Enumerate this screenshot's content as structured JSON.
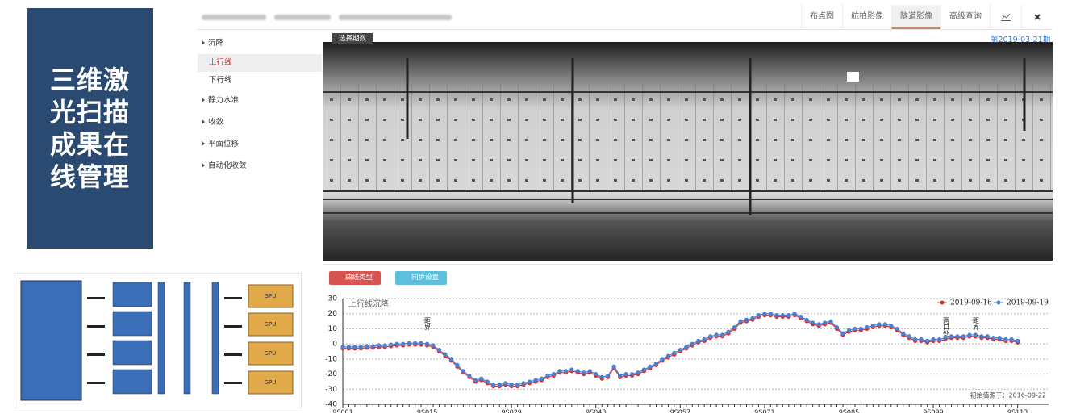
{
  "sidebar_title": {
    "lines": [
      "三维激",
      "光扫描",
      "成果在",
      "线管理"
    ]
  },
  "diagram": {
    "gpu_labels": [
      "GPU",
      "GPU",
      "GPU",
      "GPU"
    ]
  },
  "ui": {
    "tabs": [
      "布点图",
      "航拍影像",
      "隧道影像",
      "高级查询"
    ],
    "menu": [
      {
        "label": "沉降",
        "children": [
          "上行线",
          "下行线"
        ]
      },
      {
        "label": "静力水准"
      },
      {
        "label": "收敛"
      },
      {
        "label": "平面位移"
      },
      {
        "label": "自动化收敛"
      }
    ],
    "period_select": "选择期数",
    "period": "第2019-03-21期",
    "buttons": [
      "曲线类型",
      "同步设置"
    ]
  },
  "chart_data": {
    "type": "line",
    "title": "上行线沉降",
    "categories": [
      "9S001",
      null,
      null,
      null,
      null,
      null,
      null,
      null,
      null,
      null,
      null,
      null,
      null,
      null,
      "9S015",
      null,
      null,
      null,
      null,
      null,
      null,
      null,
      null,
      null,
      null,
      null,
      null,
      null,
      "9S029",
      null,
      null,
      null,
      null,
      null,
      null,
      null,
      null,
      null,
      null,
      null,
      null,
      null,
      "9S043",
      null,
      null,
      null,
      null,
      null,
      null,
      null,
      null,
      null,
      null,
      null,
      null,
      null,
      "9S057",
      null,
      null,
      null,
      null,
      null,
      null,
      null,
      null,
      null,
      null,
      null,
      null,
      null,
      "9S071",
      null,
      null,
      null,
      null,
      null,
      null,
      null,
      null,
      null,
      null,
      null,
      null,
      null,
      "9S085",
      null,
      null,
      null,
      null,
      null,
      null,
      null,
      null,
      null,
      null,
      null,
      null,
      null,
      "9S099",
      null,
      null,
      null,
      null,
      null,
      null,
      null,
      null,
      null,
      null,
      null,
      null,
      null,
      "9S113"
    ],
    "series": [
      {
        "name": "2019-09-16",
        "color": "#d9302c",
        "values": [
          -3,
          -3,
          -3,
          -3,
          -2.5,
          -2.5,
          -2,
          -2,
          -1.5,
          -1,
          -1,
          -0.5,
          -0.5,
          -0.5,
          -1,
          -2,
          -5,
          -8,
          -11,
          -15,
          -19,
          -22,
          -25,
          -24,
          -26,
          -28,
          -28,
          -27,
          -28,
          -28,
          -27,
          -26,
          -25,
          -24,
          -22,
          -21,
          -19,
          -19,
          -18,
          -19,
          -20,
          -19,
          -21,
          -23,
          -22,
          -16,
          -22,
          -21,
          -21,
          -20,
          -18,
          -16,
          -14,
          -11,
          -9,
          -7,
          -5,
          -3,
          -1,
          1,
          2,
          4,
          5,
          5,
          7,
          10,
          14,
          15,
          16,
          18,
          19,
          19,
          18,
          18,
          18,
          19,
          17,
          15,
          13,
          12,
          13,
          14,
          10,
          6,
          8,
          9,
          9,
          10,
          11,
          12,
          12,
          11,
          9,
          6,
          4,
          2,
          2,
          1,
          2,
          2,
          3,
          4,
          4,
          4,
          5,
          5,
          4,
          4,
          3,
          3,
          2,
          2,
          1
        ]
      },
      {
        "name": "2019-09-19",
        "color": "#4a7fd4",
        "values": [
          -2,
          -2,
          -2,
          -2,
          -1.5,
          -1.5,
          -1,
          -1,
          -0.5,
          0,
          0,
          0.5,
          0.5,
          0.5,
          0,
          -1,
          -4,
          -7,
          -10,
          -14,
          -18,
          -21,
          -24,
          -23,
          -25,
          -27,
          -27,
          -26,
          -27,
          -27,
          -26,
          -25,
          -24,
          -23,
          -21,
          -20,
          -18,
          -18,
          -17,
          -18,
          -19,
          -18,
          -20,
          -22,
          -21,
          -15,
          -21,
          -20,
          -20,
          -19,
          -17,
          -15,
          -13,
          -10,
          -8,
          -6,
          -4,
          -2,
          0,
          2,
          3,
          5,
          6,
          6,
          8,
          11,
          15,
          16,
          17,
          19,
          20,
          20,
          19,
          19,
          19,
          20,
          18,
          16,
          14,
          13,
          14,
          15,
          11,
          7,
          9,
          10,
          10,
          11,
          12,
          13,
          13,
          12,
          10,
          7,
          5,
          3,
          3,
          2,
          3,
          3,
          4,
          5,
          5,
          5,
          6,
          6,
          5,
          5,
          4,
          4,
          3,
          3,
          2
        ]
      }
    ],
    "ylim": [
      -40,
      30
    ],
    "yticks": [
      -40,
      -30,
      -20,
      -10,
      0,
      10,
      20,
      30
    ],
    "grid": true,
    "legend": "top-right",
    "annotations": [
      "距界",
      "两口处",
      "距界"
    ],
    "note": "初始值源于：2016-09-22"
  }
}
